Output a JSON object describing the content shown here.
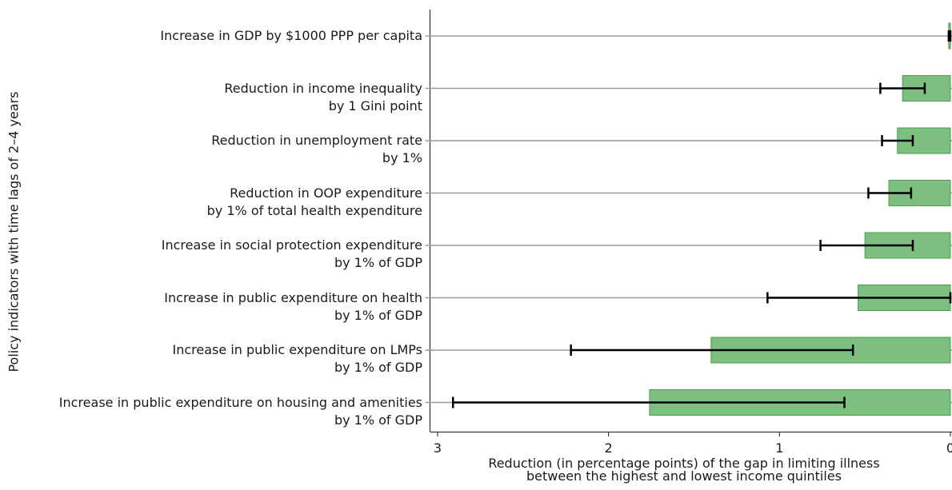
{
  "chart_data": {
    "type": "bar",
    "orientation": "horizontal",
    "x_axis_reversed": true,
    "xlim": [
      3,
      0
    ],
    "xticks": [
      "3",
      "2",
      "1",
      "0"
    ],
    "xlabel_lines": [
      "Reduction (in percentage points) of the gap in limiting illness",
      "between the highest and lowest income quintiles"
    ],
    "ylabel": "Policy indicators with time lags of 2–4 years",
    "bar_color": "#7dbf7f",
    "bar_edge_color": "#4c9b4e",
    "categories": [
      {
        "line1": "Increase in GDP by $1000 PPP per capita",
        "line2": "",
        "value": 0.01,
        "ci": [
          0.0,
          0.01
        ]
      },
      {
        "line1": "Reduction in income inequality",
        "line2": "by 1 Gini point",
        "value": 0.28,
        "ci": [
          0.15,
          0.41
        ]
      },
      {
        "line1": "Reduction in unemployment rate",
        "line2": "by 1%",
        "value": 0.31,
        "ci": [
          0.22,
          0.4
        ]
      },
      {
        "line1": "Reduction in OOP expenditure",
        "line2": "by 1% of total health expenditure",
        "value": 0.36,
        "ci": [
          0.23,
          0.48
        ]
      },
      {
        "line1": "Increase in social protection expenditure",
        "line2": "by 1% of GDP",
        "value": 0.5,
        "ci": [
          0.22,
          0.76
        ]
      },
      {
        "line1": "Increase in public expenditure on health",
        "line2": "by 1% of GDP",
        "value": 0.54,
        "ci": [
          0.0,
          1.07
        ]
      },
      {
        "line1": "Increase in public expenditure on LMPs",
        "line2": "by 1% of GDP",
        "value": 1.4,
        "ci": [
          0.57,
          2.22
        ]
      },
      {
        "line1": "Increase in public expenditure on housing and amenities",
        "line2": "by 1% of GDP",
        "value": 1.76,
        "ci": [
          0.62,
          2.91
        ]
      }
    ]
  }
}
